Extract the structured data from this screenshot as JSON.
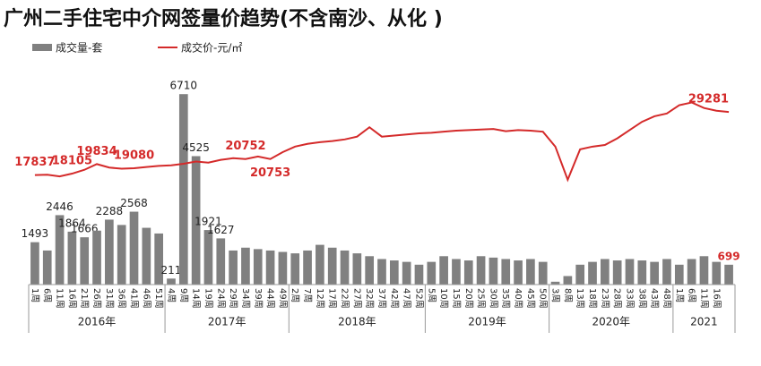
{
  "chart_data": {
    "type": "bar-line",
    "title": "广州二手住宅中介网签量价趋势(不含南沙、从化 )",
    "categories": [
      "1周",
      "6周",
      "11周",
      "16周",
      "21周",
      "26周",
      "31周",
      "36周",
      "41周",
      "46周",
      "51周",
      "4周",
      "9周",
      "14周",
      "19周",
      "24周",
      "29周",
      "34周",
      "39周",
      "44周",
      "49周",
      "2周",
      "7周",
      "12周",
      "17周",
      "22周",
      "27周",
      "32周",
      "37周",
      "42周",
      "47周",
      "52周",
      "5周",
      "10周",
      "15周",
      "20周",
      "25周",
      "30周",
      "35周",
      "40周",
      "45周",
      "50周",
      "3周",
      "8周",
      "13周",
      "18周",
      "23周",
      "28周",
      "33周",
      "38周",
      "43周",
      "48周",
      "1周",
      "6周",
      "11周",
      "16周",
      null
    ],
    "years": [
      {
        "name": "2016年",
        "count": 11
      },
      {
        "name": "2017年",
        "count": 10
      },
      {
        "name": "2018年",
        "count": 11
      },
      {
        "name": "2019年",
        "count": 10
      },
      {
        "name": "2020年",
        "count": 10
      },
      {
        "name": "2021",
        "count": 5
      }
    ],
    "series": [
      {
        "name": "成交量-套",
        "color": "#808080",
        "values": [
          1493,
          1200,
          2446,
          1864,
          1666,
          1900,
          2288,
          2100,
          2568,
          2000,
          1800,
          211,
          6710,
          4525,
          1921,
          1627,
          1200,
          1300,
          1250,
          1200,
          1150,
          1100,
          1200,
          1400,
          1300,
          1200,
          1100,
          1000,
          900,
          850,
          800,
          700,
          800,
          1000,
          900,
          850,
          1000,
          950,
          900,
          850,
          900,
          800,
          100,
          300,
          700,
          800,
          900,
          850,
          900,
          850,
          800,
          900,
          700,
          900,
          1000,
          800,
          699
        ],
        "value_labels": [
          "1493",
          null,
          "2446",
          "1864",
          "1666",
          null,
          "2288",
          null,
          "2568",
          null,
          null,
          "211",
          "6710",
          "4525",
          "1921",
          "1627",
          null,
          null,
          null,
          null,
          null,
          null,
          null,
          null,
          null,
          null,
          null,
          null,
          null,
          null,
          null,
          null,
          null,
          null,
          null,
          null,
          null,
          null,
          null,
          null,
          null,
          null,
          null,
          null,
          null,
          null,
          null,
          null,
          null,
          null,
          null,
          null,
          null,
          null,
          null,
          null,
          "699"
        ]
      },
      {
        "name": "成交价-元/㎡",
        "color": "#d42a2a",
        "axis": "y2",
        "values": [
          17837,
          17900,
          17600,
          18105,
          18800,
          19834,
          19200,
          19000,
          19080,
          19300,
          19500,
          19600,
          19900,
          20300,
          20100,
          20600,
          20900,
          20752,
          21200,
          20753,
          22000,
          23000,
          23500,
          23800,
          24000,
          24300,
          24800,
          26500,
          24800,
          25000,
          25200,
          25400,
          25500,
          25700,
          25900,
          26000,
          26100,
          26200,
          25800,
          26000,
          25900,
          25700,
          23000,
          17000,
          22500,
          23000,
          23300,
          24500,
          26000,
          27500,
          28500,
          29000,
          30500,
          31000,
          30000,
          29500,
          29281
        ],
        "value_labels": [
          "17837",
          null,
          null,
          "18105",
          null,
          "19834",
          null,
          null,
          "19080",
          null,
          null,
          null,
          null,
          null,
          null,
          null,
          null,
          "20752",
          null,
          "20753",
          null,
          null,
          null,
          null,
          null,
          null,
          null,
          null,
          null,
          null,
          null,
          null,
          null,
          null,
          null,
          null,
          null,
          null,
          null,
          null,
          null,
          null,
          null,
          null,
          null,
          null,
          null,
          null,
          null,
          null,
          null,
          null,
          null,
          null,
          null,
          null,
          "29281"
        ]
      }
    ],
    "ylim": [
      0,
      7000
    ],
    "y2lim": [
      -2000,
      34000
    ]
  }
}
